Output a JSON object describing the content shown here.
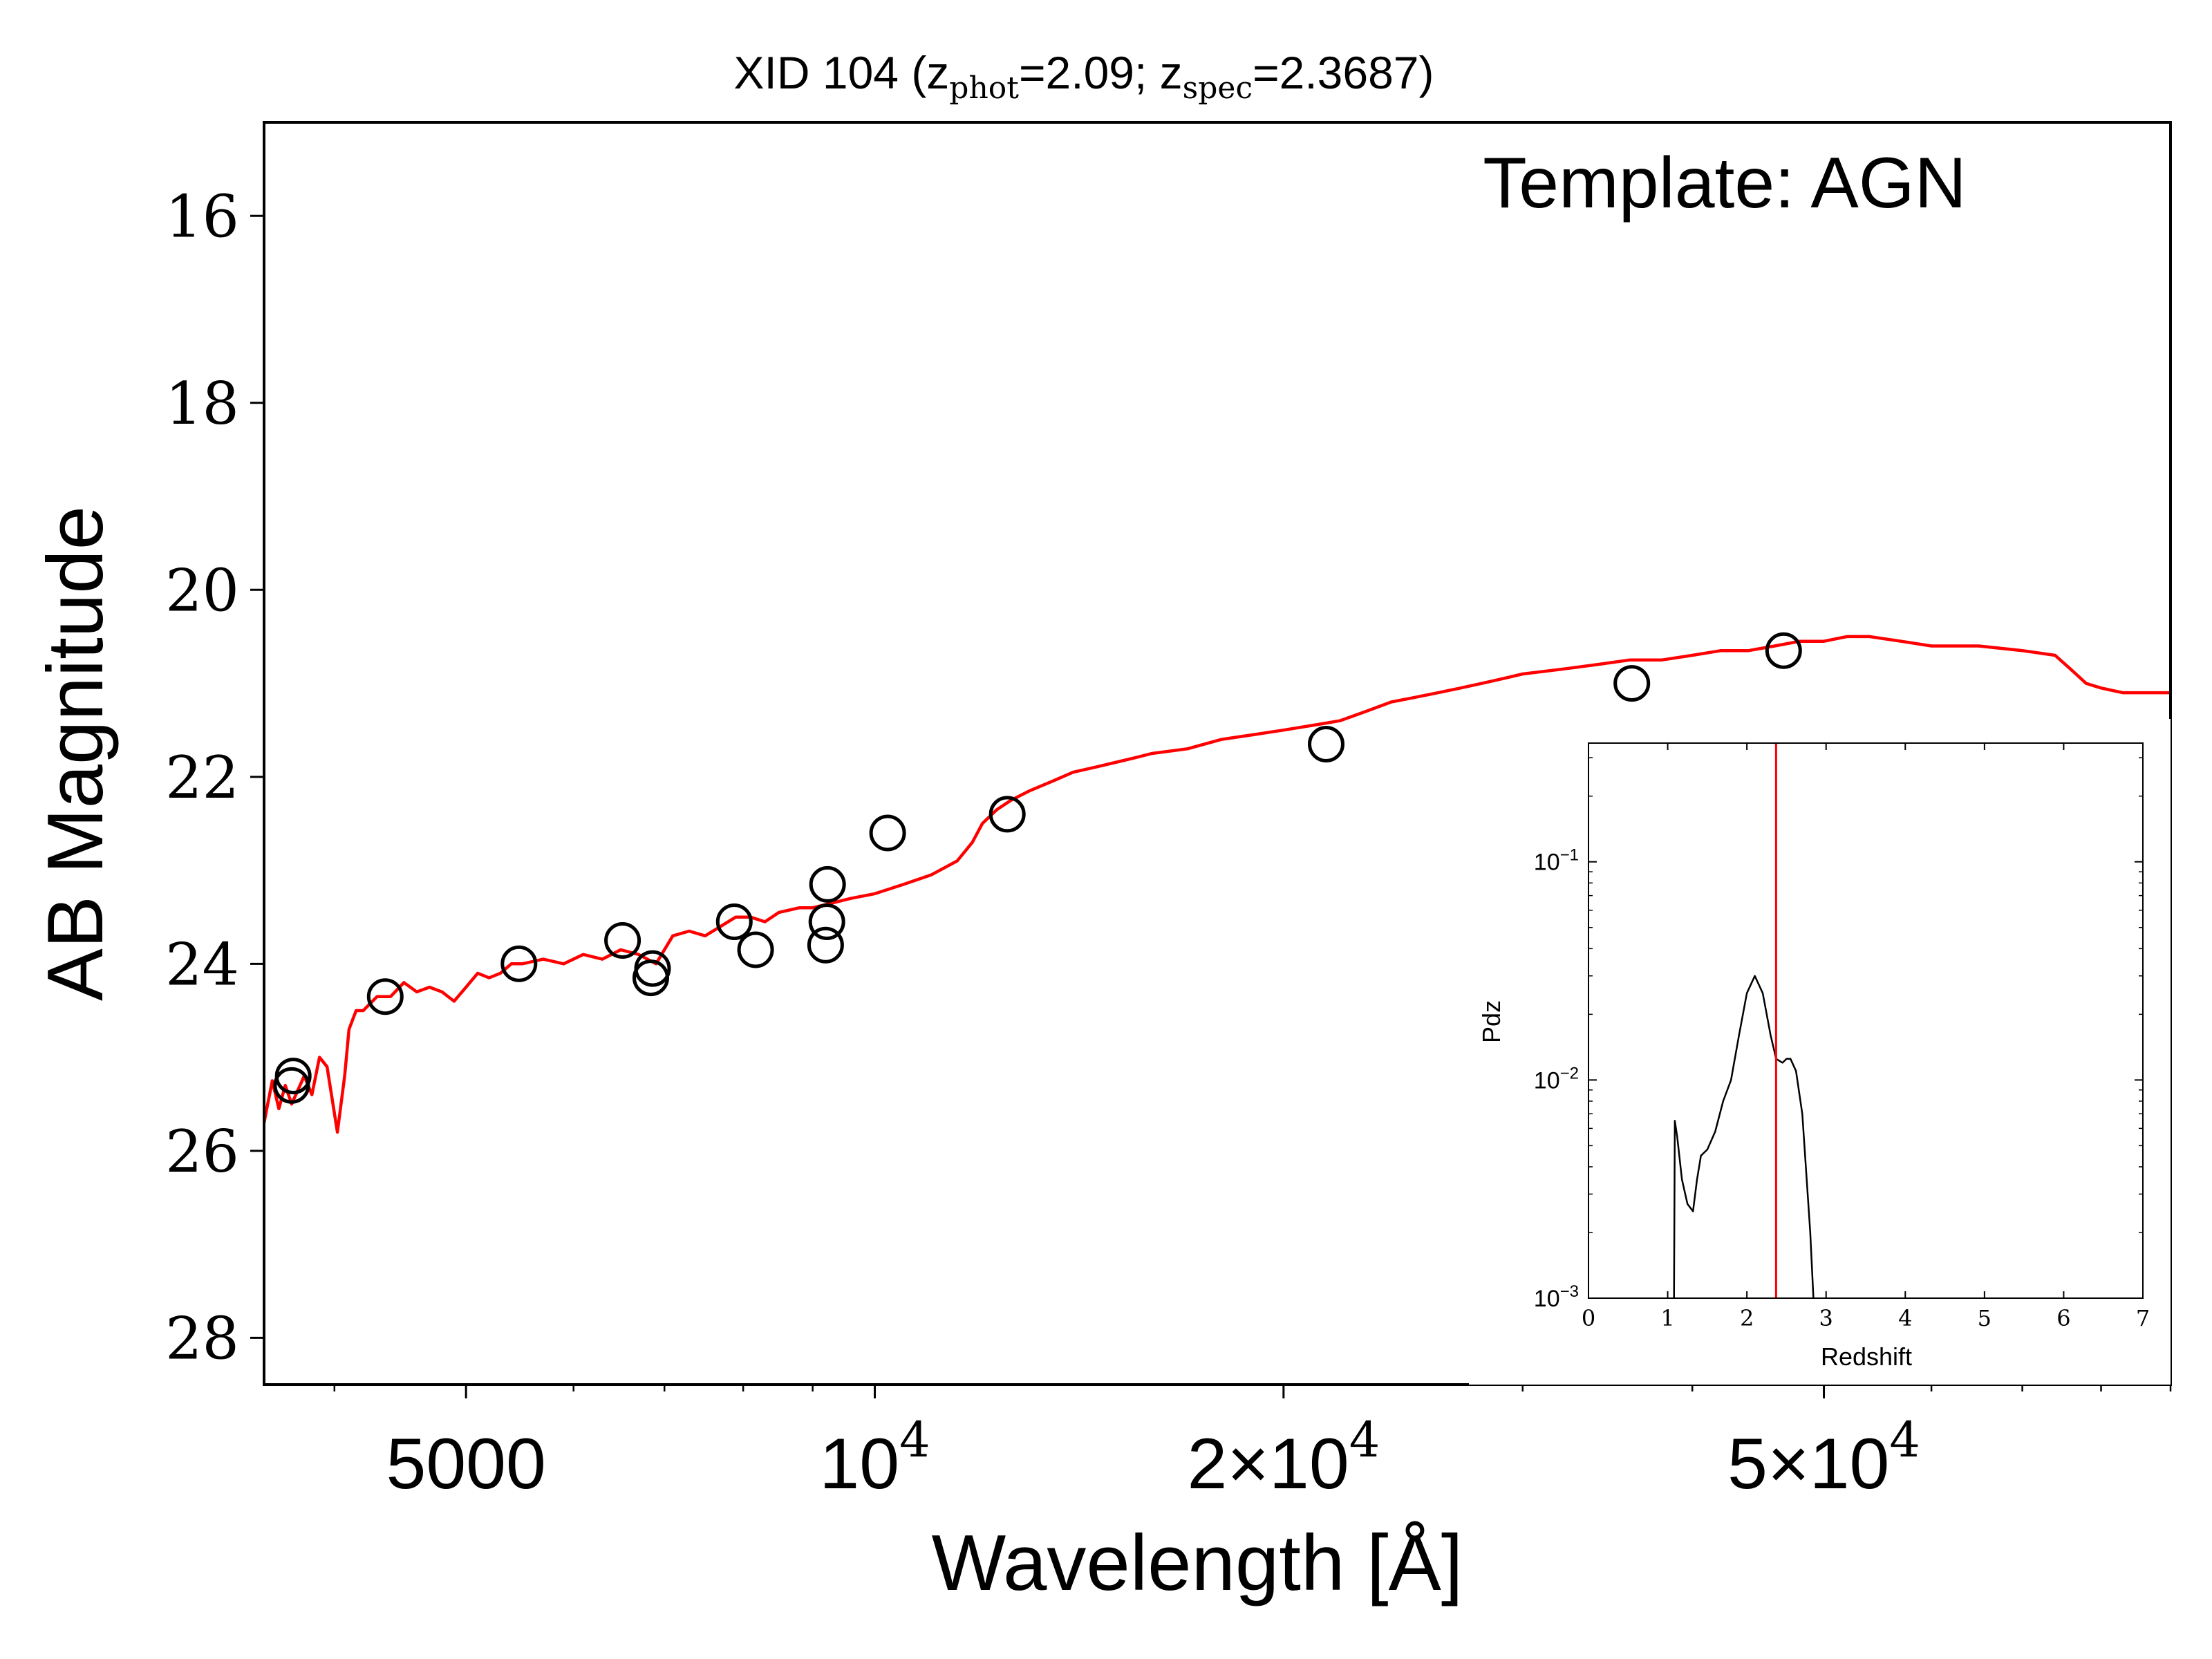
{
  "chart_data": [
    {
      "type": "line+scatter",
      "title": {
        "prefix": "XID 104 (z",
        "phot_sub": "phot",
        "phot_val": "=2.09; z",
        "spec_sub": "spec",
        "spec_val": "=2.3687)"
      },
      "annotation": "Template: AGN",
      "xlabel": "Wavelength [Å]",
      "ylabel": "AB Magnitude",
      "xscale": "log",
      "xlim": [
        3550,
        90000
      ],
      "ylim": [
        28.5,
        15.0
      ],
      "y_inverted": true,
      "xticks": [
        {
          "value": 5000,
          "base": "5000",
          "exp": ""
        },
        {
          "value": 10000,
          "base": "10",
          "exp": "4"
        },
        {
          "value": 20000,
          "base": "2×10",
          "exp": "4"
        },
        {
          "value": 50000,
          "base": "5×10",
          "exp": "4"
        }
      ],
      "yticks": [
        "16",
        "18",
        "20",
        "22",
        "24",
        "26",
        "28"
      ],
      "series": [
        {
          "kind": "line",
          "color": "#ff0000",
          "x": [
            3550,
            3600,
            3640,
            3680,
            3720,
            3760,
            3800,
            3850,
            3900,
            3950,
            4020,
            4070,
            4100,
            4150,
            4200,
            4300,
            4400,
            4500,
            4600,
            4700,
            4800,
            4900,
            5000,
            5100,
            5200,
            5300,
            5400,
            5500,
            5700,
            5900,
            6100,
            6300,
            6500,
            6700,
            6900,
            7100,
            7300,
            7500,
            7700,
            7900,
            8100,
            8300,
            8500,
            8800,
            9000,
            9300,
            9600,
            10000,
            10500,
            11000,
            11500,
            11800,
            12000,
            12300,
            12600,
            13000,
            13500,
            14000,
            14500,
            15000,
            15500,
            16000,
            17000,
            18000,
            19000,
            20000,
            21000,
            22000,
            23000,
            24000,
            25000,
            26000,
            27000,
            28000,
            29000,
            30000,
            32000,
            34000,
            36000,
            38000,
            40000,
            42000,
            44000,
            46000,
            48000,
            50000,
            52000,
            54000,
            57000,
            60000,
            65000,
            70000,
            74000,
            76000,
            78000,
            80000,
            83000,
            86000,
            90000
          ],
          "y": [
            25.7,
            25.25,
            25.55,
            25.3,
            25.5,
            25.35,
            25.2,
            25.4,
            25.0,
            25.1,
            25.8,
            25.2,
            24.7,
            24.5,
            24.5,
            24.35,
            24.35,
            24.2,
            24.3,
            24.25,
            24.3,
            24.4,
            24.25,
            24.1,
            24.15,
            24.1,
            24.0,
            24.0,
            23.95,
            24.0,
            23.9,
            23.95,
            23.85,
            23.9,
            24.0,
            23.7,
            23.65,
            23.7,
            23.6,
            23.5,
            23.5,
            23.55,
            23.45,
            23.4,
            23.4,
            23.35,
            23.3,
            23.25,
            23.15,
            23.05,
            22.9,
            22.7,
            22.5,
            22.35,
            22.25,
            22.15,
            22.05,
            21.95,
            21.9,
            21.85,
            21.8,
            21.75,
            21.7,
            21.6,
            21.55,
            21.5,
            21.45,
            21.4,
            21.3,
            21.2,
            21.15,
            21.1,
            21.05,
            21.0,
            20.95,
            20.9,
            20.85,
            20.8,
            20.75,
            20.75,
            20.7,
            20.65,
            20.65,
            20.6,
            20.55,
            20.55,
            20.5,
            20.5,
            20.55,
            20.6,
            20.6,
            20.65,
            20.7,
            20.85,
            21.0,
            21.05,
            21.1,
            21.1,
            21.1
          ]
        },
        {
          "kind": "scatter",
          "marker": "open-circle",
          "color": "#000000",
          "x": [
            3720,
            3730,
            4360,
            5470,
            6520,
            6840,
            6860,
            7880,
            8170,
            9200,
            9220,
            9230,
            10220,
            12520,
            21500,
            36100,
            46700
          ],
          "y": [
            25.3,
            25.2,
            24.35,
            24.0,
            23.75,
            24.15,
            24.05,
            23.55,
            23.85,
            23.8,
            23.55,
            23.15,
            22.6,
            22.4,
            21.65,
            21.0,
            20.65
          ]
        }
      ]
    },
    {
      "type": "line",
      "xlabel": "Redshift",
      "ylabel": "Pdz",
      "xlim": [
        0,
        7
      ],
      "ylim": [
        0.001,
        0.35
      ],
      "yscale": "log",
      "xticks": [
        "0",
        "1",
        "2",
        "3",
        "4",
        "5",
        "6",
        "7"
      ],
      "yticks": [
        {
          "value": 0.1,
          "base": "10",
          "exp": "−1"
        },
        {
          "value": 0.01,
          "base": "10",
          "exp": "−2"
        },
        {
          "value": 0.001,
          "base": "10",
          "exp": "−3"
        }
      ],
      "vline": {
        "x": 2.3687,
        "color": "#ff0000"
      },
      "series": [
        {
          "kind": "line",
          "color": "#000000",
          "x": [
            1.08,
            1.09,
            1.12,
            1.18,
            1.25,
            1.32,
            1.37,
            1.42,
            1.5,
            1.6,
            1.7,
            1.8,
            1.9,
            2.0,
            2.1,
            2.2,
            2.3,
            2.37,
            2.45,
            2.5,
            2.55,
            2.62,
            2.7,
            2.8,
            2.84
          ],
          "y": [
            0.001,
            0.0065,
            0.0055,
            0.0035,
            0.0027,
            0.0025,
            0.0035,
            0.0045,
            0.0048,
            0.0058,
            0.008,
            0.01,
            0.016,
            0.025,
            0.03,
            0.025,
            0.016,
            0.0125,
            0.012,
            0.0125,
            0.0125,
            0.011,
            0.007,
            0.002,
            0.001
          ]
        }
      ]
    }
  ]
}
